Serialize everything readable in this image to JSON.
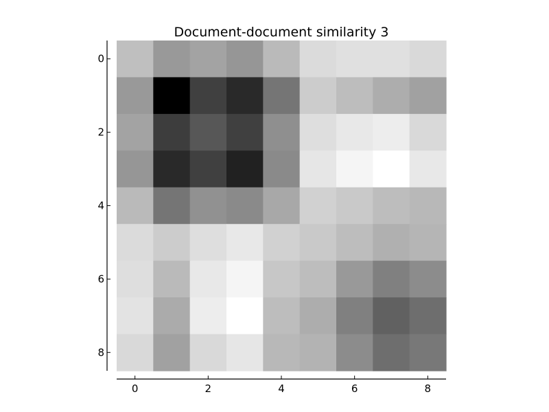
{
  "chart_data": {
    "type": "heatmap",
    "title": "Document-document similarity 3",
    "xlabel": "",
    "ylabel": "",
    "colormap": "gray",
    "color_low": "#000000",
    "color_high": "#ffffff",
    "grid": false,
    "x_ticks": [
      0,
      2,
      4,
      6,
      8
    ],
    "y_ticks": [
      0,
      2,
      4,
      6,
      8
    ],
    "x_tick_labels": [
      "0",
      "2",
      "4",
      "6",
      "8"
    ],
    "y_tick_labels": [
      "0",
      "2",
      "4",
      "6",
      "8"
    ],
    "rows": [
      0,
      1,
      2,
      3,
      4,
      5,
      6,
      7,
      8
    ],
    "columns": [
      0,
      1,
      2,
      3,
      4,
      5,
      6,
      7,
      8
    ],
    "values": [
      [
        0.75,
        0.6,
        0.64,
        0.59,
        0.73,
        0.86,
        0.88,
        0.88,
        0.85
      ],
      [
        0.6,
        0.0,
        0.25,
        0.16,
        0.46,
        0.8,
        0.74,
        0.68,
        0.63
      ],
      [
        0.64,
        0.24,
        0.34,
        0.25,
        0.56,
        0.87,
        0.91,
        0.93,
        0.85
      ],
      [
        0.59,
        0.16,
        0.25,
        0.13,
        0.54,
        0.9,
        0.96,
        1.0,
        0.91
      ],
      [
        0.73,
        0.46,
        0.57,
        0.54,
        0.66,
        0.82,
        0.79,
        0.74,
        0.72
      ],
      [
        0.86,
        0.8,
        0.87,
        0.91,
        0.82,
        0.79,
        0.74,
        0.69,
        0.71
      ],
      [
        0.87,
        0.73,
        0.91,
        0.96,
        0.78,
        0.74,
        0.6,
        0.5,
        0.55
      ],
      [
        0.89,
        0.67,
        0.93,
        1.0,
        0.74,
        0.68,
        0.5,
        0.38,
        0.43
      ],
      [
        0.85,
        0.63,
        0.85,
        0.9,
        0.72,
        0.7,
        0.55,
        0.43,
        0.47
      ]
    ]
  }
}
